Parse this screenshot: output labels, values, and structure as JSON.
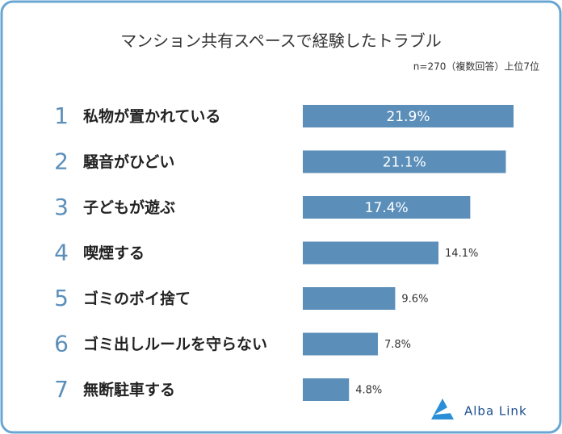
{
  "chart_data": {
    "type": "bar",
    "orientation": "horizontal",
    "title": "マンション共有スペースで経験したトラブル",
    "subtitle": "n=270（複数回答）上位7位",
    "ranks": [
      1,
      2,
      3,
      4,
      5,
      6,
      7
    ],
    "categories": [
      "私物が置かれている",
      "騒音がひどい",
      "子どもが遊ぶ",
      "喫煙する",
      "ゴミのポイ捨て",
      "ゴミ出しルールを守らない",
      "無断駐車する"
    ],
    "values": [
      21.9,
      21.1,
      17.4,
      14.1,
      9.6,
      7.8,
      4.8
    ],
    "value_labels": [
      "21.9%",
      "21.1%",
      "17.4%",
      "14.1%",
      "9.6%",
      "7.8%",
      "4.8%"
    ],
    "color": "#5b8fba",
    "logo": "Alba Link"
  }
}
